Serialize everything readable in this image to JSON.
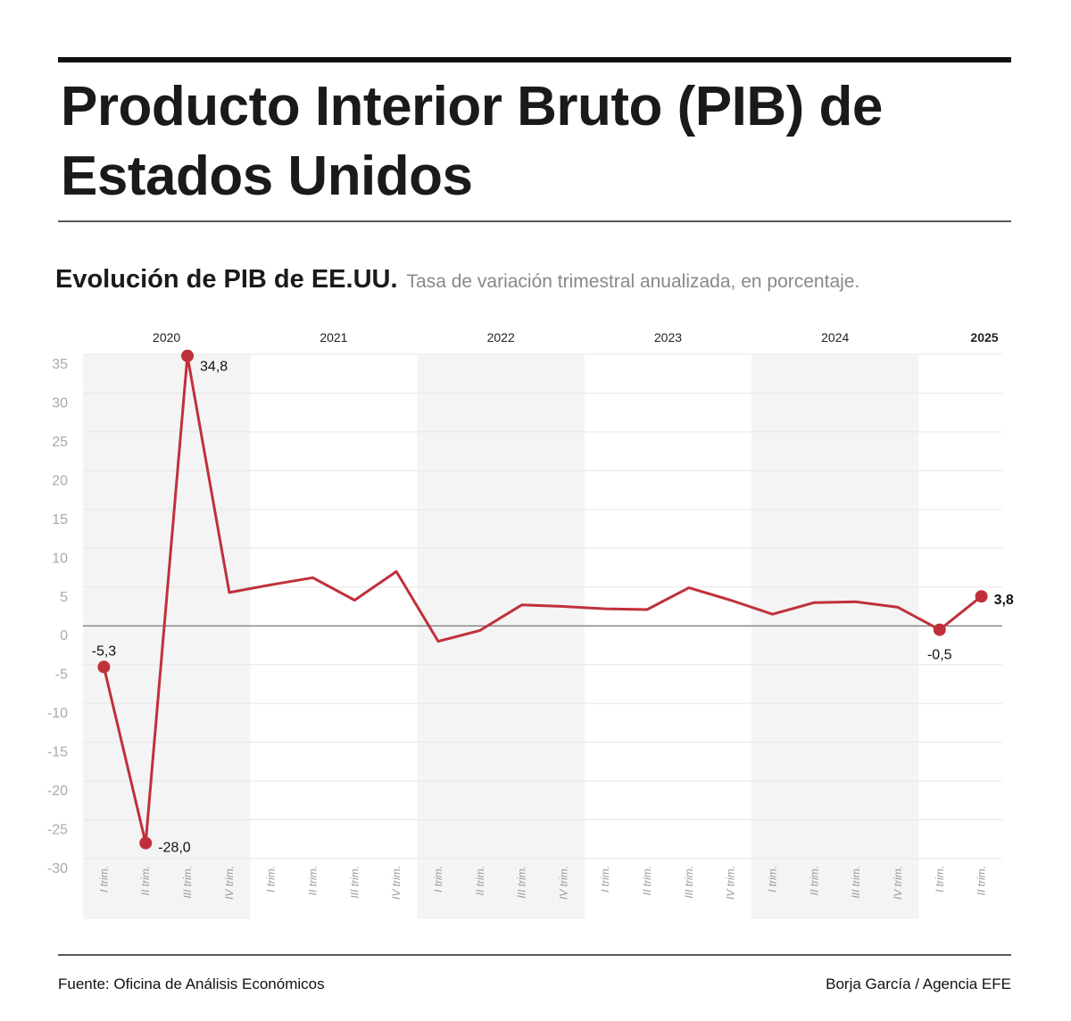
{
  "chart_data": {
    "type": "line",
    "title": [
      "Producto Interior Bruto (PIB) de",
      "Estados Unidos"
    ],
    "subtitle": "Evolución de PIB de EE.UU.",
    "note": "Tasa de variación trimestral anualizada, en porcentaje.",
    "source": "Fuente: Oficina de Análisis Económicos",
    "credit": "Borja García / Agencia EFE",
    "year_labels": [
      "2020",
      "2021",
      "2022",
      "2023",
      "2024",
      "2025"
    ],
    "categories": [
      "I trim.",
      "II trim.",
      "III trim.",
      "IV trim.",
      "I trim.",
      "II trim.",
      "III trim.",
      "IV trim.",
      "I trim.",
      "II trim.",
      "III trim.",
      "IV trim.",
      "I trim.",
      "II trim.",
      "III trim.",
      "IV trim.",
      "I trim.",
      "II trim.",
      "III trim.",
      "IV trim.",
      "I trim.",
      "II trim."
    ],
    "series": [
      {
        "name": "PIB",
        "color": "#c0303b",
        "values": [
          -5.3,
          -28.0,
          34.8,
          4.3,
          5.3,
          6.2,
          3.3,
          7.0,
          -2.0,
          -0.6,
          2.7,
          2.5,
          2.2,
          2.1,
          4.9,
          3.3,
          1.5,
          3.0,
          3.1,
          2.4,
          -0.5,
          3.8
        ],
        "value_labels": [
          "-5,3",
          "-28,0",
          "34,8",
          null,
          null,
          null,
          null,
          null,
          null,
          null,
          null,
          null,
          null,
          null,
          null,
          null,
          null,
          null,
          null,
          null,
          "-0,5",
          "3,8"
        ]
      }
    ],
    "ylim": [
      -30,
      35
    ],
    "yticks": [
      35,
      30,
      25,
      20,
      15,
      10,
      5,
      0,
      -5,
      -10,
      -15,
      -20,
      -25,
      -30
    ],
    "grid": true
  }
}
